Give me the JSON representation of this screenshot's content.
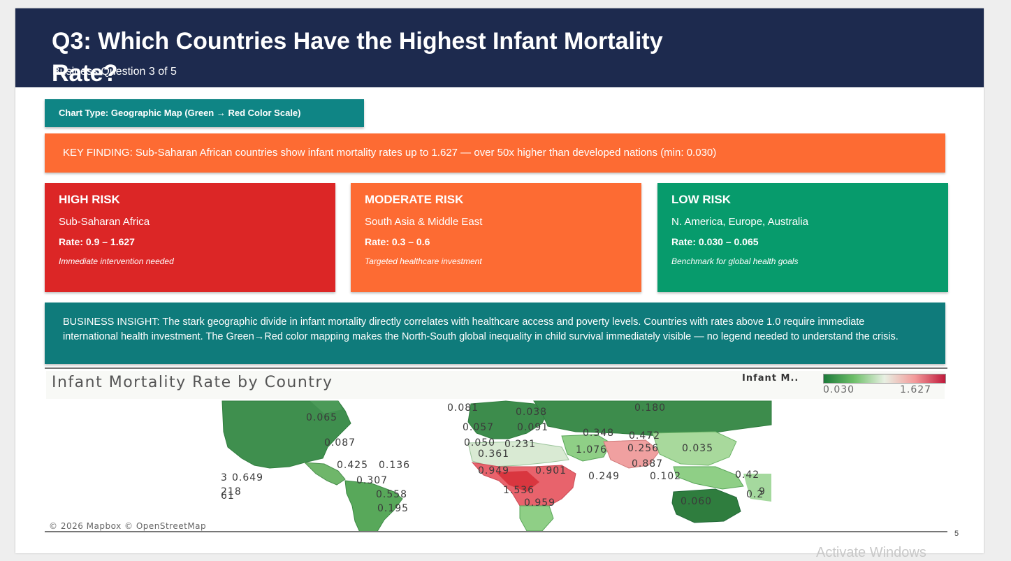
{
  "slide": {
    "title": "Q3: Which Countries Have the Highest Infant Mortality Rate?",
    "subtitle": "Business Question 3 of 5",
    "page_number": "5"
  },
  "chart_type": "Chart Type: Geographic Map (Green → Red Color Scale)",
  "key_finding": "KEY FINDING: Sub-Saharan African countries show infant mortality rates up to 1.627 — over 50x higher than developed nations (min: 0.030)",
  "cards": [
    {
      "title": "HIGH RISK",
      "region": "Sub-Saharan Africa",
      "rate": "Rate: 0.9 – 1.627",
      "note": "Immediate intervention needed",
      "color": "#dc2626"
    },
    {
      "title": "MODERATE RISK",
      "region": "South Asia & Middle East",
      "rate": "Rate: 0.3 – 0.6",
      "note": "Targeted healthcare investment",
      "color": "#fd6b33"
    },
    {
      "title": "LOW RISK",
      "region": "N. America, Europe, Australia",
      "rate": "Rate: 0.030 – 0.065",
      "note": "Benchmark for global health goals",
      "color": "#079b6c"
    }
  ],
  "insight": "BUSINESS INSIGHT: The stark geographic divide in infant mortality directly correlates with healthcare access and poverty levels. Countries with rates above 1.0 require immediate international health investment. The Green→Red color mapping makes the North-South global inequality in child survival immediately visible — no legend needed to understand the crisis.",
  "map": {
    "title": "Infant Mortality Rate by Country",
    "legend_title": "Infant M..",
    "legend_min": "0.030",
    "legend_max": "1.627",
    "attribution": "© 2026 Mapbox © OpenStreetMap",
    "labels": [
      "0.065",
      "0.087",
      "0.081",
      "0.038",
      "0.180",
      "0.057",
      "0.091",
      "0.050",
      "0.231",
      "0.348",
      "0.472",
      "0.361",
      "1.076",
      "0.256",
      "0.035",
      "0.425",
      "0.136",
      "0.887",
      "0.949",
      "0.901",
      "0.649",
      "0.307",
      "0.249",
      "0.102",
      "0.42",
      "218",
      "0.558",
      "1.536",
      "0.2",
      "61",
      "0.959",
      "0.060",
      "0.195",
      "3",
      "9"
    ],
    "colors": {
      "low": "#1c7a39",
      "mid": "#e8f0e3",
      "high": "#c0193b"
    }
  },
  "watermark": "Activate Windows"
}
